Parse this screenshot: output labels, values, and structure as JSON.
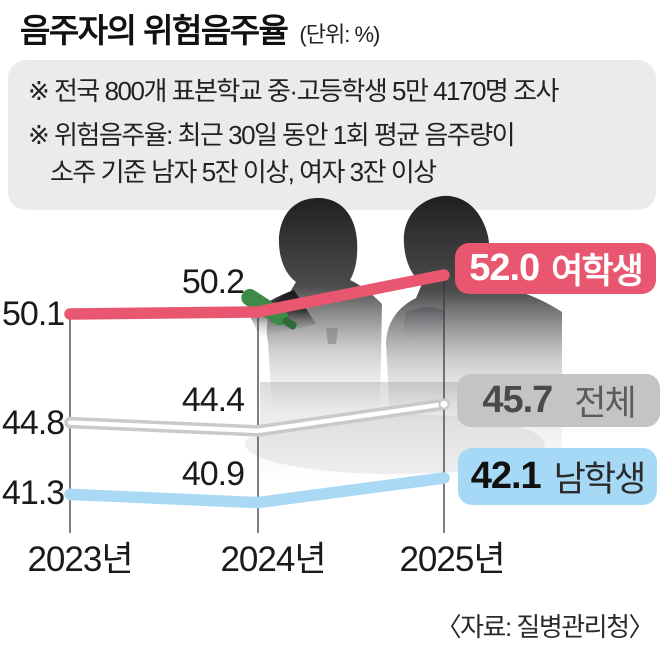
{
  "header": {
    "title": "음주자의 위험음주율",
    "unit": "(단위: %)"
  },
  "notes": {
    "line1": "※ 전국 800개 표본학교 중·고등학생 5만 4170명 조사",
    "line2": "※ 위험음주율: 최근 30일 동안 1회 평균 음주량이",
    "line3": "소주 기준 남자 5잔 이상, 여자 3잔 이상"
  },
  "source": "〈자료: 질병관리청〉",
  "illustration": {
    "description": "silhouette of two students in school uniforms, one pouring soju for the other",
    "bottle_color": "#3e8a46"
  },
  "chart_data": {
    "type": "line",
    "title": "음주자의 위험음주율",
    "unit": "%",
    "categories": [
      "2023년",
      "2024년",
      "2025년"
    ],
    "series": [
      {
        "name": "여학생",
        "values": [
          50.1,
          50.2,
          52.0
        ],
        "labels": [
          "50.1",
          "50.2",
          "52.0"
        ],
        "line_color": "#e8566f",
        "badge_bg": "#e8566f",
        "badge_value_color": "#ffffff",
        "badge_name_color": "#ffffff"
      },
      {
        "name": "전체",
        "values": [
          44.8,
          44.4,
          45.7
        ],
        "labels": [
          "44.8",
          "44.4",
          "45.7"
        ],
        "line_color": "#c9c9c9",
        "badge_bg": "#c4c4c4",
        "badge_value_color": "#4a4a4a",
        "badge_name_color": "#5c5c5c"
      },
      {
        "name": "남학생",
        "values": [
          41.3,
          40.9,
          42.1
        ],
        "labels": [
          "41.3",
          "40.9",
          "42.1"
        ],
        "line_color": "#a9d9f5",
        "badge_bg": "#a6d9f6",
        "badge_value_color": "#111111",
        "badge_name_color": "#2b2b2b"
      }
    ],
    "ylim": [
      38,
      54
    ],
    "grid": "vertical-category-lines",
    "legend_position": "right-badges",
    "guide_color": "#3a3a3a"
  }
}
